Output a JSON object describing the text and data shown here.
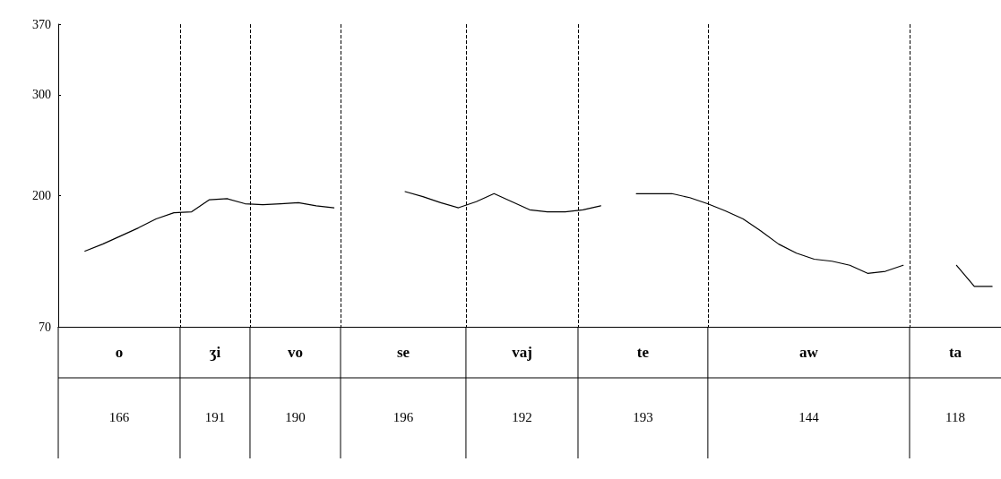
{
  "chart_data": {
    "type": "line",
    "categories": [
      null,
      null,
      null,
      null,
      null,
      null,
      null,
      null,
      null,
      null,
      null,
      null,
      null,
      null,
      null,
      null,
      null,
      null,
      null,
      null,
      null,
      null,
      null,
      null,
      null,
      null,
      null,
      null,
      null,
      null,
      null,
      null,
      null,
      null,
      null,
      null,
      null,
      null,
      null,
      null,
      null,
      null,
      null,
      null,
      null,
      null,
      null,
      null,
      null,
      null,
      null,
      null,
      null
    ],
    "ylim": [
      70,
      370
    ],
    "yticks": [
      70,
      200,
      300,
      370
    ],
    "tick_labels": "y",
    "grid": false,
    "marker": "none",
    "line_style": "solid",
    "series": [
      {
        "color": "#000000",
        "values": [
          null,
          145,
          152,
          160,
          168,
          177,
          183,
          184,
          196,
          197,
          192,
          191,
          192,
          193,
          190,
          188,
          null,
          null,
          null,
          null,
          null,
          null,
          null,
          null,
          null,
          null,
          null,
          null,
          null,
          null,
          null,
          null,
          null,
          null,
          null,
          null,
          null,
          null,
          null,
          null,
          null,
          null,
          null,
          null,
          null,
          null,
          null,
          null,
          null,
          null,
          null,
          null,
          null
        ]
      },
      {
        "color": "#000000",
        "values": [
          null,
          null,
          null,
          null,
          null,
          null,
          null,
          null,
          null,
          null,
          null,
          null,
          null,
          null,
          null,
          null,
          null,
          null,
          null,
          204,
          199,
          193,
          188,
          194,
          202,
          194,
          186,
          184,
          184,
          186,
          190,
          null,
          null,
          null,
          null,
          null,
          null,
          null,
          null,
          null,
          null,
          null,
          null,
          null,
          null,
          null,
          null,
          null,
          null,
          null,
          null,
          null,
          null
        ]
      },
      {
        "color": "#000000",
        "values": [
          null,
          null,
          null,
          null,
          null,
          null,
          null,
          null,
          null,
          null,
          null,
          null,
          null,
          null,
          null,
          null,
          null,
          null,
          null,
          null,
          null,
          null,
          null,
          null,
          null,
          null,
          null,
          null,
          null,
          null,
          null,
          null,
          202,
          202,
          202,
          198,
          192,
          185,
          177,
          165,
          152,
          143,
          137,
          135,
          131,
          123,
          125,
          131,
          null,
          null,
          null,
          null,
          null
        ]
      },
      {
        "color": "#000000",
        "values": [
          null,
          null,
          null,
          null,
          null,
          null,
          null,
          null,
          null,
          null,
          null,
          null,
          null,
          null,
          null,
          null,
          null,
          null,
          null,
          null,
          null,
          null,
          null,
          null,
          null,
          null,
          null,
          null,
          null,
          null,
          null,
          null,
          null,
          null,
          null,
          null,
          null,
          null,
          null,
          null,
          null,
          null,
          null,
          null,
          null,
          null,
          null,
          null,
          null,
          null,
          131,
          110,
          110
        ]
      }
    ],
    "annotations": [
      "o",
      "ʒi",
      "vo",
      "se",
      "vaj",
      "te",
      "aw",
      "ta",
      "166",
      "191",
      "190",
      "196",
      "192",
      "193",
      "144",
      "118"
    ]
  }
}
